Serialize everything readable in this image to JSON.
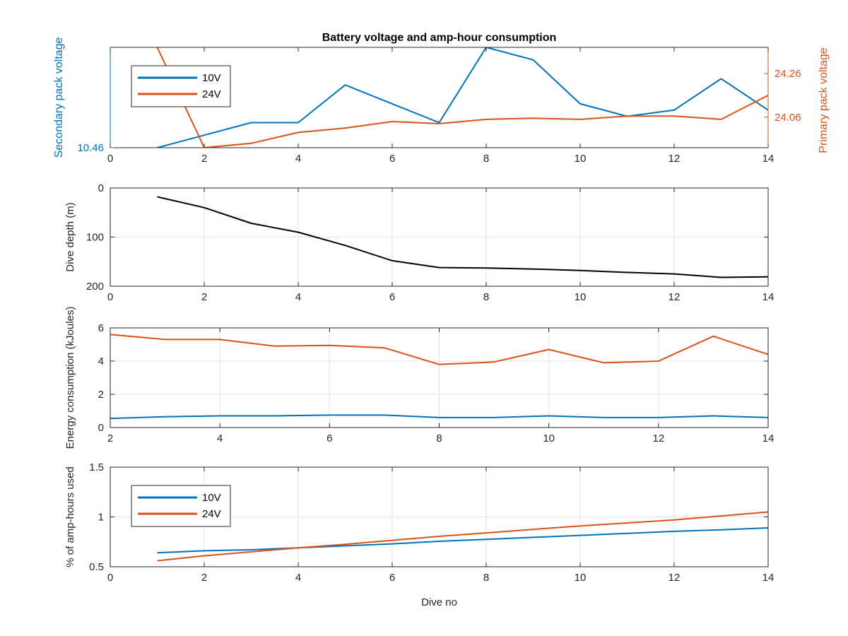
{
  "chart_data": [
    {
      "type": "line",
      "title": "Battery voltage and amp-hour consumption",
      "ylabel": "Secondary pack voltage",
      "ylabel_right": "Primary pack voltage",
      "xlabel": "",
      "xlim": [
        0,
        14
      ],
      "xticks": [
        "0",
        "2",
        "4",
        "6",
        "8",
        "10",
        "12",
        "14"
      ],
      "ylim": [
        10.46,
        10.78
      ],
      "yticks": [
        "10.46"
      ],
      "ylim_right": [
        23.92,
        24.38
      ],
      "yticks_right": [
        "24.06",
        "24.26"
      ],
      "grid": false,
      "legend": "top-left",
      "colors": {
        "left": "#0072BD",
        "right": "#D95319"
      },
      "series": [
        {
          "name": "10V",
          "axis": "left",
          "color": "#0072BD",
          "x": [
            1,
            2,
            3,
            4,
            5,
            6,
            7,
            8,
            9,
            10,
            11,
            12,
            13,
            14
          ],
          "y": [
            10.46,
            10.5,
            10.54,
            10.54,
            10.66,
            10.6,
            10.54,
            10.78,
            10.74,
            10.6,
            10.56,
            10.58,
            10.68,
            10.58
          ]
        },
        {
          "name": "24V",
          "axis": "right",
          "color": "#D95319",
          "x": [
            1,
            2,
            3,
            4,
            5,
            6,
            7,
            8,
            9,
            10,
            11,
            12,
            13,
            14
          ],
          "y": [
            24.38,
            23.92,
            23.94,
            23.99,
            24.01,
            24.04,
            24.03,
            24.05,
            24.055,
            24.05,
            24.065,
            24.065,
            24.05,
            24.16
          ]
        }
      ]
    },
    {
      "type": "line",
      "title": "",
      "xlabel": "",
      "ylabel": "Dive depth (m)",
      "xlim": [
        0,
        14
      ],
      "xticks": [
        "0",
        "2",
        "4",
        "6",
        "8",
        "10",
        "12",
        "14"
      ],
      "ylim": [
        0,
        200
      ],
      "y_reversed": true,
      "yticks": [
        "0",
        "100",
        "200"
      ],
      "grid": true,
      "color": "#000000",
      "series": [
        {
          "x": [
            1,
            2,
            3,
            4,
            5,
            6,
            7,
            8,
            9,
            10,
            11,
            12,
            13,
            14
          ],
          "y": [
            18,
            40,
            72,
            90,
            117,
            148,
            162,
            163,
            165,
            168,
            172,
            175,
            182,
            181
          ]
        }
      ]
    },
    {
      "type": "line",
      "title": "",
      "xlabel": "",
      "ylabel": "Energy consumption (kJoules)",
      "xlim": [
        2,
        14
      ],
      "xticks": [
        "2",
        "4",
        "6",
        "8",
        "10",
        "12",
        "14"
      ],
      "ylim": [
        0,
        6
      ],
      "yticks": [
        "0",
        "2",
        "4",
        "6"
      ],
      "grid": true,
      "series": [
        {
          "color": "#D95319",
          "x": [
            2,
            3,
            4,
            5,
            6,
            7,
            8,
            9,
            10,
            11,
            12,
            13,
            14
          ],
          "y": [
            5.6,
            5.3,
            5.3,
            4.9,
            4.95,
            4.8,
            3.8,
            3.95,
            4.7,
            3.9,
            4.0,
            5.5,
            4.4
          ]
        },
        {
          "color": "#0072BD",
          "x": [
            2,
            3,
            4,
            5,
            6,
            7,
            8,
            9,
            10,
            11,
            12,
            13,
            14
          ],
          "y": [
            0.55,
            0.65,
            0.7,
            0.7,
            0.75,
            0.75,
            0.6,
            0.6,
            0.7,
            0.6,
            0.6,
            0.7,
            0.6
          ]
        }
      ]
    },
    {
      "type": "line",
      "title": "",
      "xlabel": "Dive no",
      "ylabel": "% of amp-hours used",
      "xlim": [
        0,
        14
      ],
      "xticks": [
        "0",
        "2",
        "4",
        "6",
        "8",
        "10",
        "12",
        "14"
      ],
      "ylim": [
        0.5,
        1.5
      ],
      "yticks": [
        "0.5",
        "1",
        "1.5"
      ],
      "grid": true,
      "legend": "top-left",
      "series": [
        {
          "name": "10V",
          "color": "#0072BD",
          "x": [
            1,
            2,
            3,
            4,
            5,
            6,
            7,
            8,
            9,
            10,
            11,
            12,
            13,
            14
          ],
          "y": [
            0.64,
            0.66,
            0.67,
            0.69,
            0.71,
            0.73,
            0.755,
            0.775,
            0.795,
            0.815,
            0.835,
            0.855,
            0.87,
            0.89
          ]
        },
        {
          "name": "24V",
          "color": "#D95319",
          "x": [
            1,
            2,
            3,
            4,
            5,
            6,
            7,
            8,
            9,
            10,
            11,
            12,
            13,
            14
          ],
          "y": [
            0.56,
            0.61,
            0.65,
            0.69,
            0.725,
            0.765,
            0.805,
            0.84,
            0.875,
            0.91,
            0.94,
            0.97,
            1.01,
            1.05
          ]
        }
      ]
    }
  ]
}
